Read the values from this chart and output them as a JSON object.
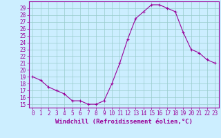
{
  "x": [
    0,
    1,
    2,
    3,
    4,
    5,
    6,
    7,
    8,
    9,
    10,
    11,
    12,
    13,
    14,
    15,
    16,
    17,
    18,
    19,
    20,
    21,
    22,
    23
  ],
  "y": [
    19.0,
    18.5,
    17.5,
    17.0,
    16.5,
    15.5,
    15.5,
    15.0,
    15.0,
    15.5,
    18.0,
    21.0,
    24.5,
    27.5,
    28.5,
    29.5,
    29.5,
    29.0,
    28.5,
    25.5,
    23.0,
    22.5,
    21.5,
    21.0
  ],
  "line_color": "#990099",
  "marker": "+",
  "bg_color": "#cceeff",
  "grid_color": "#99cccc",
  "xlabel": "Windchill (Refroidissement éolien,°C)",
  "ylabel_ticks": [
    15,
    16,
    17,
    18,
    19,
    20,
    21,
    22,
    23,
    24,
    25,
    26,
    27,
    28,
    29
  ],
  "xlim": [
    -0.5,
    23.5
  ],
  "ylim": [
    14.5,
    30.0
  ],
  "tick_color": "#990099",
  "label_color": "#990099",
  "font_size": 5.5,
  "xlabel_fontsize": 6.5
}
